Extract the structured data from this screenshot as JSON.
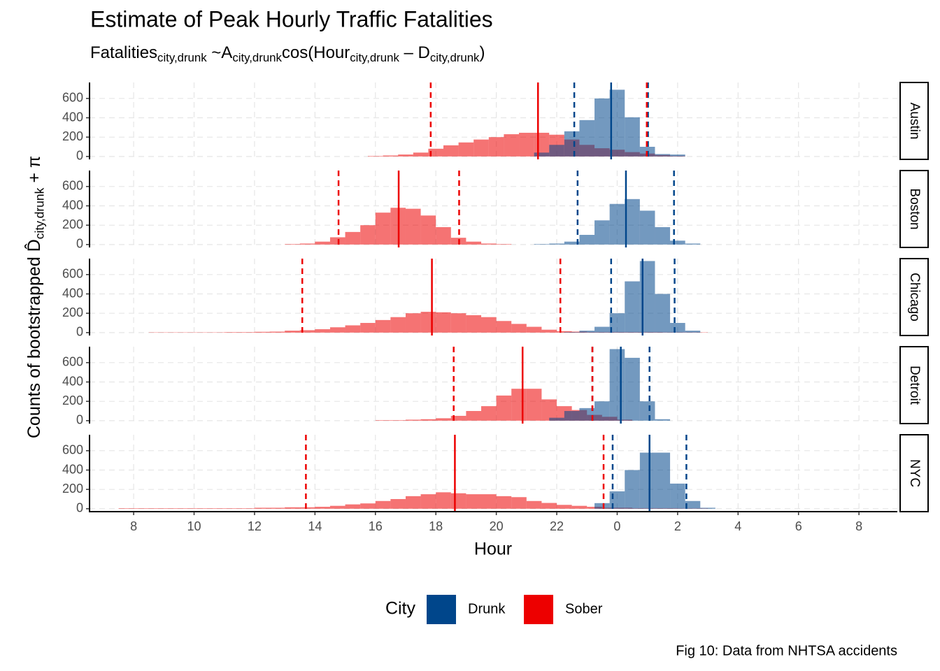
{
  "chart_data": {
    "type": "histogram",
    "title": "Estimate of Peak Hourly Traffic Fatalities",
    "subtitle": [
      "Fatalities",
      "city,drunk",
      " ~A",
      "city,drunk",
      "cos(Hour",
      "city,drunk",
      " – D",
      "city,drunk",
      ")"
    ],
    "y_label": [
      "Counts of bootstrapped D̂",
      "city,drunk",
      " + π"
    ],
    "x_label": "Hour",
    "legend_title": "City",
    "legend_position": "bottom",
    "caption": "Fig 10: Data from NHTSA accidents",
    "grid": true,
    "xlim": [
      6.54,
      33.27
    ],
    "xticks": [
      8,
      10,
      12,
      14,
      16,
      18,
      20,
      22,
      {
        "value": 24,
        "label": "0"
      },
      {
        "value": 26,
        "label": "2"
      },
      {
        "value": 28,
        "label": "4"
      },
      {
        "value": 30,
        "label": "6"
      },
      {
        "value": 32,
        "label": "8"
      }
    ],
    "ylim": [
      -30,
      765
    ],
    "yticks": [
      0,
      200,
      400,
      600
    ],
    "facets": [
      {
        "label": "Austin",
        "series": [
          {
            "name": "Drunk",
            "color": "#00468B",
            "peak": 23.8,
            "interval": [
              22.58,
              25.02
            ],
            "bins": [
              21.25,
              21.75,
              22.25,
              22.75,
              23.25,
              23.75,
              24.25,
              24.75,
              25.25,
              25.75,
              26.25
            ],
            "values": [
              40,
              120,
              260,
              376,
              600,
              690,
              405,
              100,
              25,
              20
            ]
          },
          {
            "name": "Sober",
            "color": "#ED0000",
            "peak": 21.38,
            "interval": [
              17.83,
              24.98
            ],
            "bins": [
              15.75,
              16.25,
              16.75,
              17.25,
              17.75,
              18.25,
              18.75,
              19.25,
              19.75,
              20.25,
              20.75,
              21.25,
              21.75,
              22.25,
              22.75,
              23.25,
              23.75,
              24.25,
              24.75,
              25.25,
              25.75,
              26.25
            ],
            "values": [
              5,
              10,
              20,
              40,
              80,
              115,
              145,
              175,
              200,
              230,
              245,
              245,
              225,
              175,
              120,
              85,
              70,
              45,
              30,
              15,
              5
            ]
          }
        ]
      },
      {
        "label": "Boston",
        "series": [
          {
            "name": "Drunk",
            "color": "#00468B",
            "peak": 24.29,
            "interval": [
              22.69,
              25.88
            ],
            "bins": [
              21.25,
              21.75,
              22.25,
              22.75,
              23.25,
              23.75,
              24.25,
              24.75,
              25.25,
              25.75,
              26.25,
              26.75
            ],
            "values": [
              5,
              10,
              30,
              100,
              250,
              420,
              470,
              350,
              180,
              40,
              10
            ]
          },
          {
            "name": "Sober",
            "color": "#ED0000",
            "peak": 16.77,
            "interval": [
              14.78,
              18.77
            ],
            "bins": [
              13,
              13.5,
              14,
              14.5,
              15,
              15.5,
              16,
              16.5,
              17,
              17.5,
              18,
              18.5,
              19,
              19.5,
              20,
              20.5
            ],
            "values": [
              5,
              10,
              30,
              75,
              130,
              200,
              330,
              380,
              370,
              300,
              180,
              70,
              30,
              10,
              5
            ]
          }
        ]
      },
      {
        "label": "Chicago",
        "series": [
          {
            "name": "Drunk",
            "color": "#00468B",
            "peak": 24.84,
            "interval": [
              23.8,
              25.9
            ],
            "bins": [
              22.25,
              22.75,
              23.25,
              23.75,
              24.25,
              24.75,
              25.25,
              25.75,
              26.25,
              26.75
            ],
            "values": [
              5,
              20,
              60,
              200,
              530,
              740,
              400,
              100,
              20
            ]
          },
          {
            "name": "Sober",
            "color": "#ED0000",
            "peak": 17.87,
            "interval": [
              13.58,
              22.12
            ],
            "bins": [
              8.5,
              9,
              9.5,
              10,
              10.5,
              11,
              11.5,
              12,
              12.5,
              13,
              13.5,
              14,
              14.5,
              15,
              15.5,
              16,
              16.5,
              17,
              17.5,
              18,
              18.5,
              19,
              19.5,
              20,
              20.5,
              21,
              21.5,
              22,
              22.5,
              23,
              23.5,
              24,
              24.5,
              25,
              25.5,
              26,
              26.5,
              27
            ],
            "values": [
              3,
              3,
              3,
              3,
              3,
              5,
              5,
              8,
              10,
              20,
              25,
              35,
              55,
              75,
              100,
              130,
              160,
              200,
              215,
              210,
              200,
              180,
              160,
              120,
              90,
              60,
              30,
              15,
              10,
              5,
              5,
              5,
              5,
              5,
              3,
              3,
              3
            ]
          }
        ]
      },
      {
        "label": "Detroit",
        "series": [
          {
            "name": "Drunk",
            "color": "#00468B",
            "peak": 24.12,
            "interval": [
              23.18,
              25.07
            ],
            "bins": [
              21.75,
              22.25,
              22.75,
              23.25,
              23.75,
              24.25,
              24.75,
              25.25,
              25.75
            ],
            "values": [
              30,
              100,
              130,
              200,
              740,
              650,
              200,
              15
            ]
          },
          {
            "name": "Sober",
            "color": "#ED0000",
            "peak": 20.87,
            "interval": [
              18.59,
              23.18
            ],
            "bins": [
              16,
              16.5,
              17,
              17.5,
              18,
              18.5,
              19,
              19.5,
              20,
              20.5,
              21,
              21.5,
              22,
              22.5,
              23,
              23.5,
              24,
              24.5
            ],
            "values": [
              5,
              5,
              10,
              15,
              25,
              50,
              100,
              150,
              260,
              330,
              330,
              220,
              150,
              110,
              60,
              40,
              10
            ]
          }
        ]
      },
      {
        "label": "NYC",
        "series": [
          {
            "name": "Drunk",
            "color": "#00468B",
            "peak": 25.07,
            "interval": [
              23.85,
              26.29
            ],
            "bins": [
              23.25,
              23.75,
              24.25,
              24.75,
              25.25,
              25.75,
              26.25,
              26.75,
              27.25
            ],
            "values": [
              58,
              180,
              400,
              580,
              580,
              260,
              80,
              10
            ]
          },
          {
            "name": "Sober",
            "color": "#ED0000",
            "peak": 18.63,
            "interval": [
              13.7,
              23.55
            ],
            "bins": [
              7.5,
              8,
              8.5,
              9,
              9.5,
              10,
              10.5,
              11,
              11.5,
              12,
              12.5,
              13,
              13.5,
              14,
              14.5,
              15,
              15.5,
              16,
              16.5,
              17,
              17.5,
              18,
              18.5,
              19,
              19.5,
              20,
              20.5,
              21,
              21.5,
              22,
              22.5,
              23,
              23.5,
              24,
              24.5,
              25,
              25.5,
              26,
              26.5,
              27
            ],
            "values": [
              5,
              5,
              5,
              5,
              5,
              5,
              5,
              5,
              5,
              10,
              10,
              15,
              15,
              20,
              30,
              45,
              55,
              80,
              100,
              130,
              150,
              170,
              160,
              150,
              150,
              130,
              120,
              80,
              60,
              40,
              30,
              20,
              10,
              10,
              5,
              5,
              5,
              3,
              3
            ]
          }
        ]
      }
    ]
  }
}
